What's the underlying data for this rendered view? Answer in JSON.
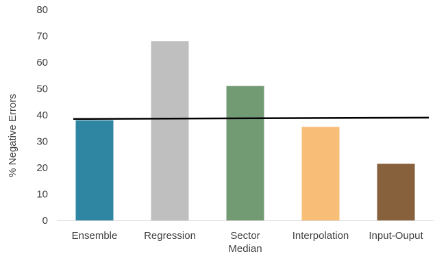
{
  "chart_data": {
    "type": "bar",
    "title": "",
    "xlabel": "",
    "ylabel": "% Negative Errors",
    "ylim": [
      0,
      80
    ],
    "yticks": [
      0,
      10,
      20,
      30,
      40,
      50,
      60,
      70,
      80
    ],
    "grid": false,
    "categories": [
      [
        "Ensemble"
      ],
      [
        "Regression"
      ],
      [
        "Sector",
        "Median"
      ],
      [
        "Interpolation"
      ],
      [
        "Input-Ouput"
      ]
    ],
    "values": [
      38,
      68,
      51,
      35.5,
      21.5
    ],
    "colors": [
      "#2e86a3",
      "#bfbfbf",
      "#739b73",
      "#f8be78",
      "#87603c"
    ],
    "reference_line": {
      "color": "#000000",
      "y_start": 38.5,
      "y_end": 39
    }
  }
}
